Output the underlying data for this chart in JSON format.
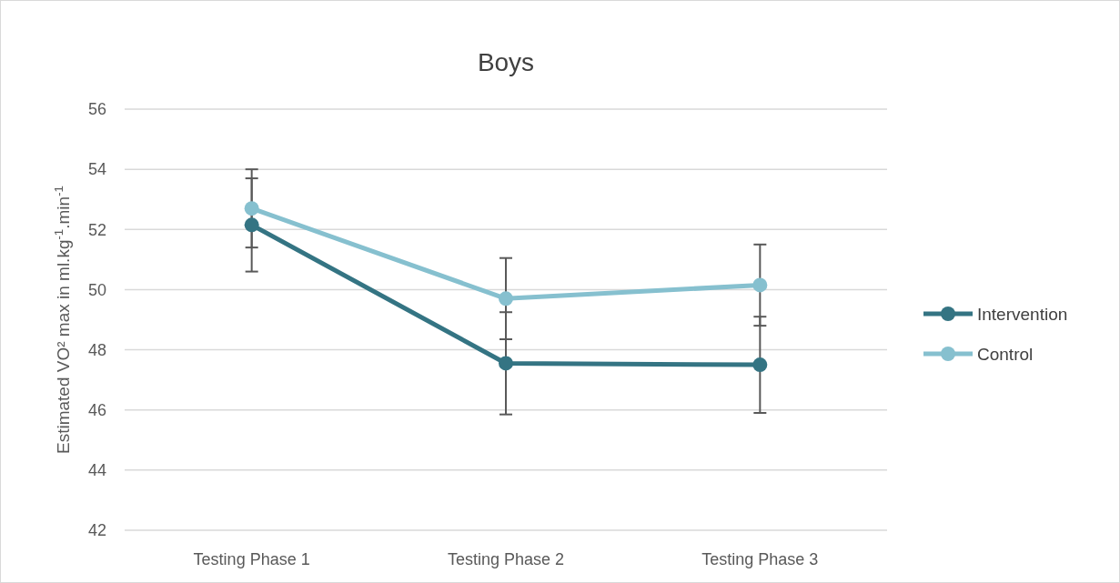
{
  "chart_data": {
    "type": "line",
    "title": "Boys",
    "ylabel": "Estimated VO² max in ml.kg$^{-1}$.min$^{-1}$",
    "categories": [
      "Testing Phase 1",
      "Testing Phase 2",
      "Testing Phase 3"
    ],
    "series": [
      {
        "name": "Intervention",
        "color": "#347483",
        "values": [
          52.15,
          47.55,
          47.5
        ],
        "errors": [
          1.55,
          1.7,
          1.6
        ]
      },
      {
        "name": "Control",
        "color": "#86c0cf",
        "values": [
          52.7,
          49.7,
          50.15
        ],
        "errors": [
          1.3,
          1.35,
          1.35
        ]
      }
    ],
    "ylim": [
      42,
      56
    ],
    "yticks": [
      42,
      44,
      46,
      48,
      50,
      52,
      54,
      56
    ],
    "grid": "y",
    "legend": "right",
    "marker": "circle",
    "line_style": "solid"
  }
}
